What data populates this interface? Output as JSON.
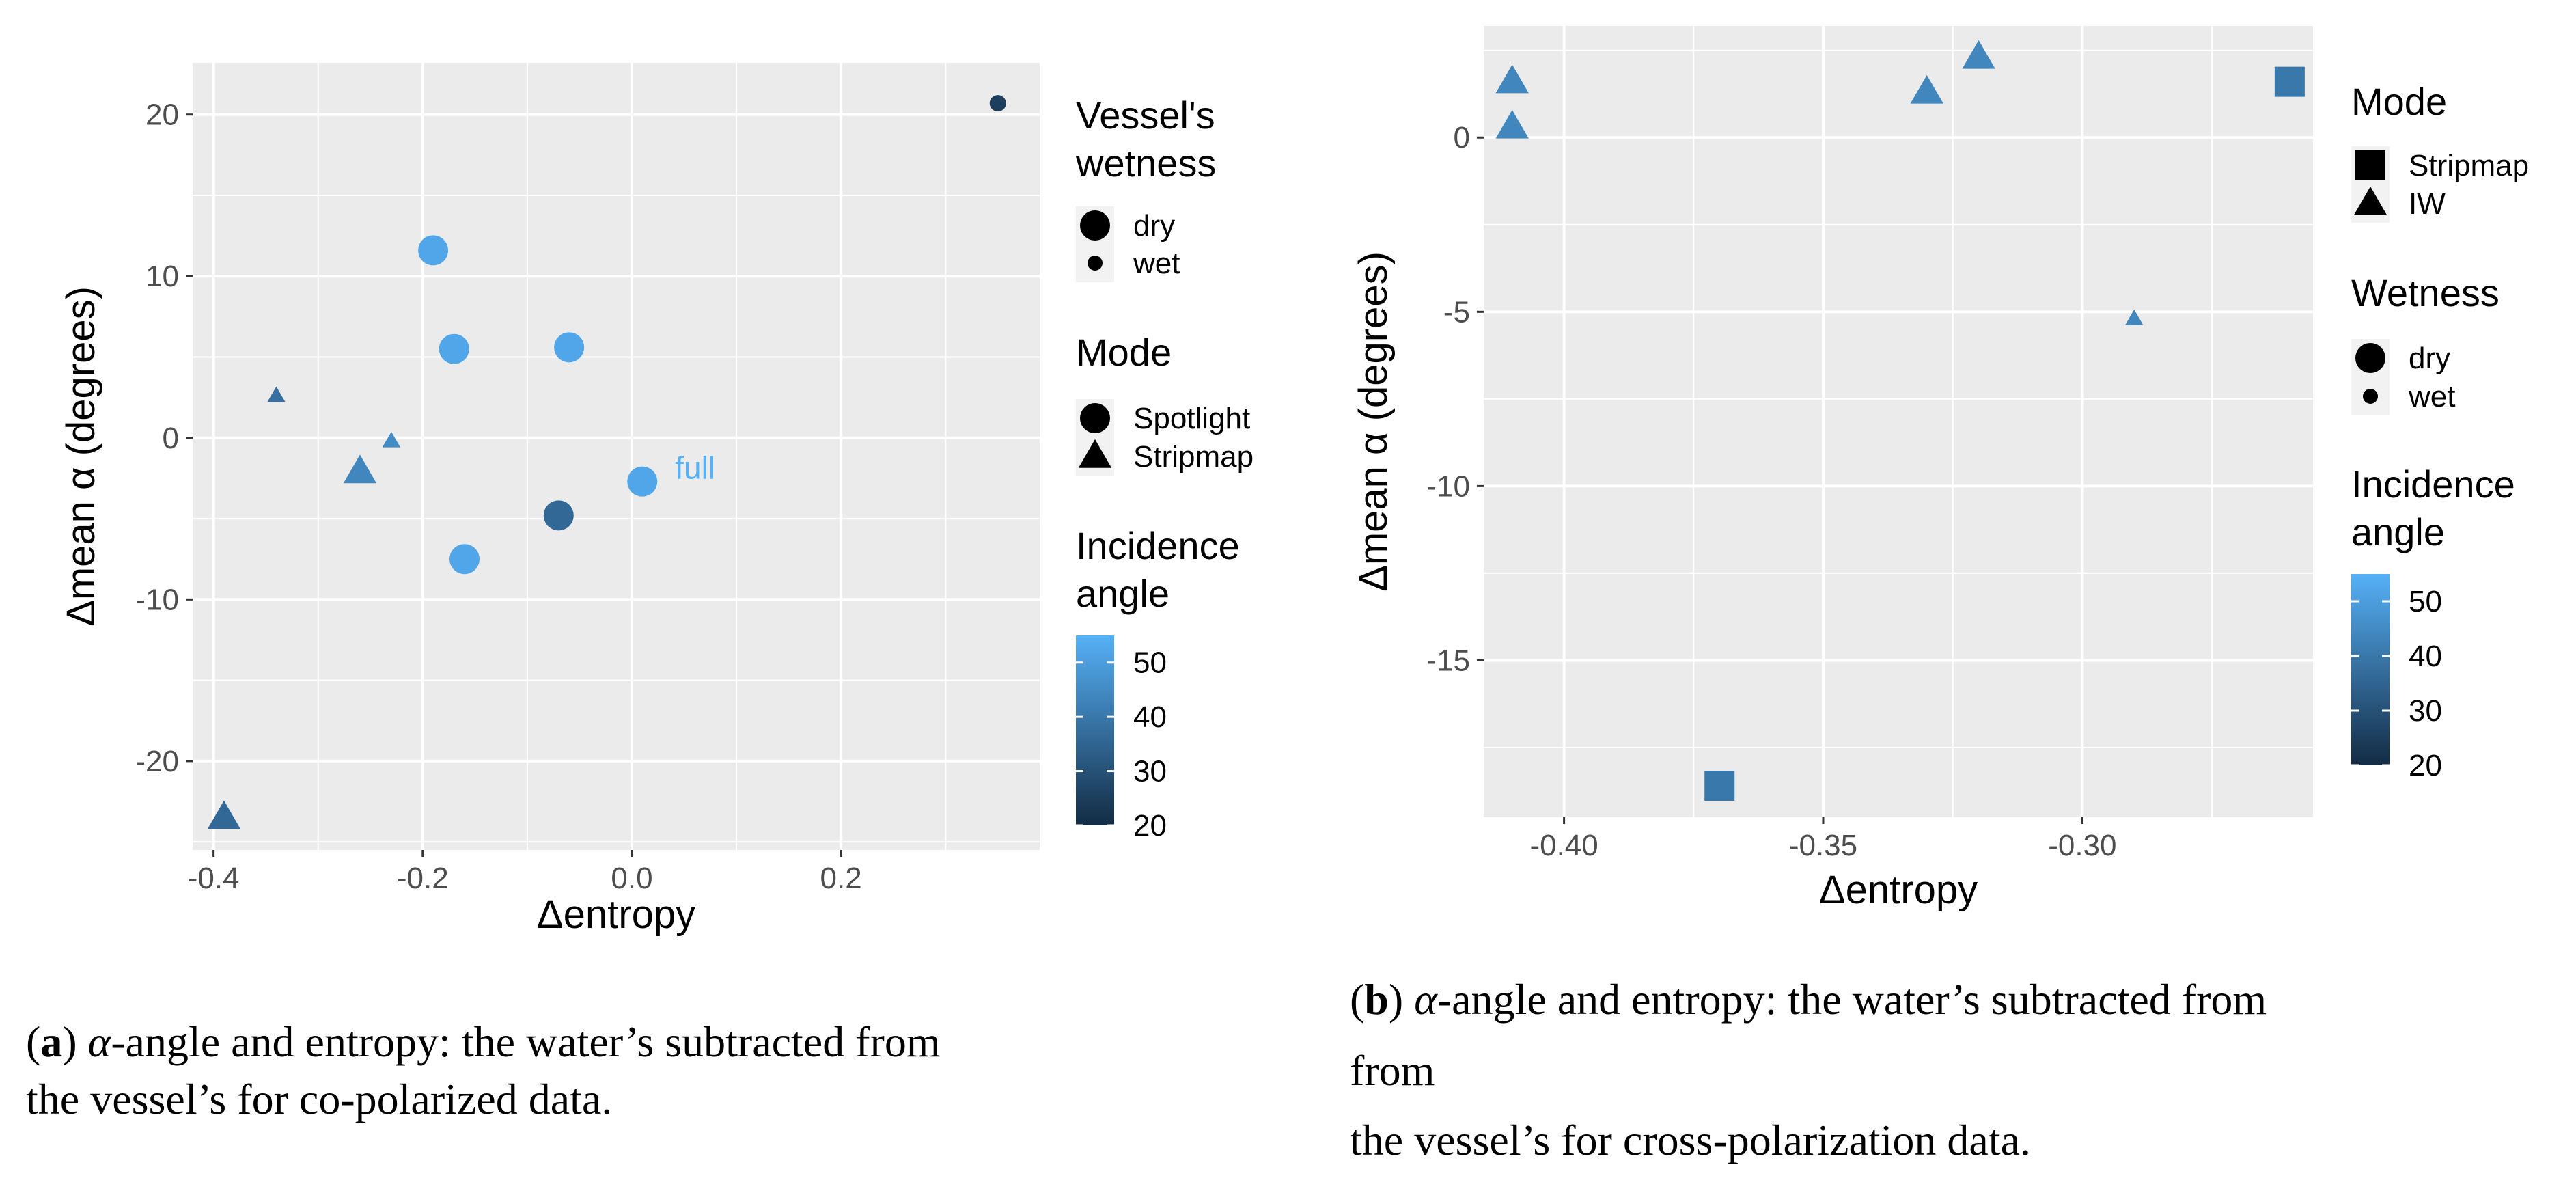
{
  "chart_data": [
    {
      "type": "scatter",
      "xlabel": "Δentropy",
      "ylabel": "Δmean α (degrees)",
      "xlim": [
        -0.42,
        0.39
      ],
      "ylim": [
        -25.5,
        23.2
      ],
      "xticks": [
        -0.4,
        -0.2,
        0.0,
        0.2
      ],
      "xtick_labels": [
        "-0.4",
        "-0.2",
        "0.0",
        "0.2"
      ],
      "yticks": [
        -20,
        -10,
        0,
        10,
        20
      ],
      "ytick_labels": [
        "-20",
        "-10",
        "0",
        "10",
        "20"
      ],
      "grid": true,
      "points": [
        {
          "x": 0.35,
          "y": 20.7,
          "mode": "Spotlight",
          "wetness": "wet",
          "incidence": 25
        },
        {
          "x": -0.19,
          "y": 11.6,
          "mode": "Spotlight",
          "wetness": "dry",
          "incidence": 52
        },
        {
          "x": -0.17,
          "y": 5.5,
          "mode": "Spotlight",
          "wetness": "dry",
          "incidence": 52
        },
        {
          "x": -0.06,
          "y": 5.6,
          "mode": "Spotlight",
          "wetness": "dry",
          "incidence": 52
        },
        {
          "x": -0.34,
          "y": 2.6,
          "mode": "Stripmap",
          "wetness": "wet",
          "incidence": 38
        },
        {
          "x": -0.23,
          "y": -0.2,
          "mode": "Stripmap",
          "wetness": "wet",
          "incidence": 45
        },
        {
          "x": -0.26,
          "y": -2.1,
          "mode": "Stripmap",
          "wetness": "dry",
          "incidence": 44
        },
        {
          "x": 0.01,
          "y": -2.7,
          "mode": "Spotlight",
          "wetness": "dry",
          "incidence": 52
        },
        {
          "x": -0.07,
          "y": -4.8,
          "mode": "Spotlight",
          "wetness": "dry",
          "incidence": 36
        },
        {
          "x": -0.16,
          "y": -7.5,
          "mode": "Spotlight",
          "wetness": "dry",
          "incidence": 52
        },
        {
          "x": -0.39,
          "y": -23.5,
          "mode": "Stripmap",
          "wetness": "dry",
          "incidence": 36
        }
      ],
      "annotations": [
        {
          "x": 0.01,
          "y": -2.7,
          "text": "full",
          "color": "#56B1F7"
        }
      ],
      "legend": {
        "position": "right",
        "wetness_title": [
          "Vessel's",
          "wetness"
        ],
        "wetness_items": [
          "dry",
          "wet"
        ],
        "mode_title": "Mode",
        "mode_items": [
          "Spotlight",
          "Stripmap"
        ],
        "color_title": [
          "Incidence",
          "angle"
        ],
        "color_range": [
          20,
          55
        ],
        "color_ticks": [
          20,
          30,
          40,
          50
        ],
        "color_tick_labels": [
          "20",
          "30",
          "40",
          "50"
        ]
      }
    },
    {
      "type": "scatter",
      "xlabel": "Δentropy",
      "ylabel": "Δmean α (degrees)",
      "xlim": [
        -0.4155,
        -0.2555
      ],
      "ylim": [
        -19.5,
        3.2
      ],
      "xticks": [
        -0.4,
        -0.35,
        -0.3
      ],
      "xtick_labels": [
        "-0.40",
        "-0.35",
        "-0.30"
      ],
      "yticks": [
        -15,
        -10,
        -5,
        0
      ],
      "ytick_labels": [
        "-15",
        "-10",
        "-5",
        "0"
      ],
      "grid": true,
      "points": [
        {
          "x": -0.41,
          "y": 1.6,
          "mode": "IW",
          "wetness": "dry",
          "incidence": 44
        },
        {
          "x": -0.41,
          "y": 0.3,
          "mode": "IW",
          "wetness": "dry",
          "incidence": 44
        },
        {
          "x": -0.33,
          "y": 1.3,
          "mode": "IW",
          "wetness": "dry",
          "incidence": 44
        },
        {
          "x": -0.32,
          "y": 2.3,
          "mode": "IW",
          "wetness": "dry",
          "incidence": 44
        },
        {
          "x": -0.26,
          "y": 1.6,
          "mode": "Stripmap",
          "wetness": "dry",
          "incidence": 40
        },
        {
          "x": -0.29,
          "y": -5.2,
          "mode": "IW",
          "wetness": "wet",
          "incidence": 44
        },
        {
          "x": -0.37,
          "y": -18.6,
          "mode": "Stripmap",
          "wetness": "dry",
          "incidence": 40
        }
      ],
      "legend": {
        "position": "right",
        "mode_title": "Mode",
        "mode_items": [
          "Stripmap",
          "IW"
        ],
        "wetness_title": [
          "Wetness"
        ],
        "wetness_items": [
          "dry",
          "wet"
        ],
        "color_title": [
          "Incidence",
          "angle"
        ],
        "color_range": [
          20,
          55
        ],
        "color_ticks": [
          20,
          30,
          40,
          50
        ],
        "color_tick_labels": [
          "20",
          "30",
          "40",
          "50"
        ]
      }
    }
  ],
  "captions": [
    {
      "label": "a",
      "lines": [
        "α-angle and entropy:  the water’s subtracted from",
        "the vessel’s for co-polarized data."
      ]
    },
    {
      "label": "b",
      "lines": [
        "α-angle and entropy:  the water’s subtracted from",
        "from",
        "the vessel’s for cross-polarization data."
      ]
    }
  ],
  "colors": {
    "panel_bg": "#EBEBEB",
    "grid": "#FFFFFF",
    "low": "#132B43",
    "high": "#56B1F7",
    "axis_text": "#4D4D4D"
  }
}
